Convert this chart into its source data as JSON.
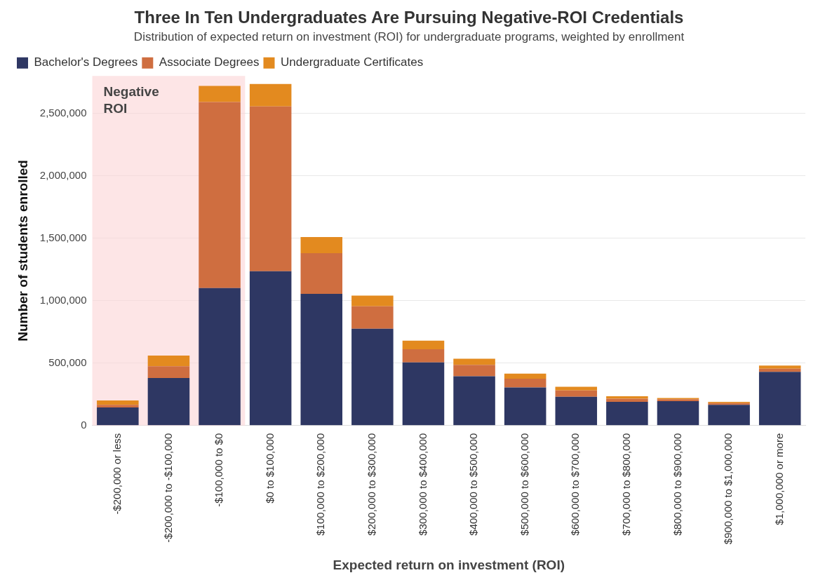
{
  "chart_data": {
    "type": "bar",
    "title": "Three In Ten Undergraduates Are Pursuing Negative-ROI Credentials",
    "subtitle": "Distribution of expected return on investment (ROI) for undergraduate programs, weighted by enrollment",
    "xlabel": "Expected return on investment (ROI)",
    "ylabel": "Number of students enrolled",
    "categories": [
      "-$200,000 or less",
      "-$200,000 to -$100,000",
      "-$100,000 to $0",
      "$0 to $100,000",
      "$100,000 to $200,000",
      "$200,000 to $300,000",
      "$300,000 to $400,000",
      "$400,000 to $500,000",
      "$500,000 to $600,000",
      "$600,000 to $700,000",
      "$700,000 to $800,000",
      "$800,000 to $900,000",
      "$900,000 to $1,000,000",
      "$1,000,000 or more"
    ],
    "stacked": true,
    "series": [
      {
        "name": "Bachelor's Degrees",
        "color": "#2e3763",
        "values": [
          145000,
          380000,
          1100000,
          1235000,
          1055000,
          775000,
          505000,
          395000,
          305000,
          230000,
          190000,
          195000,
          165000,
          430000
        ]
      },
      {
        "name": "Associate Degrees",
        "color": "#cf6e40",
        "values": [
          20000,
          95000,
          1490000,
          1320000,
          325000,
          180000,
          105000,
          90000,
          70000,
          50000,
          25000,
          15000,
          15000,
          25000
        ]
      },
      {
        "name": "Undergraduate Certificates",
        "color": "#e38a1f",
        "values": [
          35000,
          85000,
          130000,
          180000,
          130000,
          85000,
          70000,
          50000,
          40000,
          30000,
          20000,
          10000,
          10000,
          25000
        ]
      }
    ],
    "ylim": [
      0,
      2800000
    ],
    "yticks": [
      {
        "value": 0,
        "label": "0"
      },
      {
        "value": 500000,
        "label": "500,000"
      },
      {
        "value": 1000000,
        "label": "1,000,000"
      },
      {
        "value": 1500000,
        "label": "1,500,000"
      },
      {
        "value": 2000000,
        "label": "2,000,000"
      },
      {
        "value": 2500000,
        "label": "2,500,000"
      }
    ],
    "bands": [
      {
        "axis": "x",
        "from": "-$200,000 or less",
        "to": "-$100,000 to $0",
        "label": "Negative ROI",
        "color": "#fbd3d6"
      }
    ],
    "grid": "y",
    "legend": "top left"
  }
}
